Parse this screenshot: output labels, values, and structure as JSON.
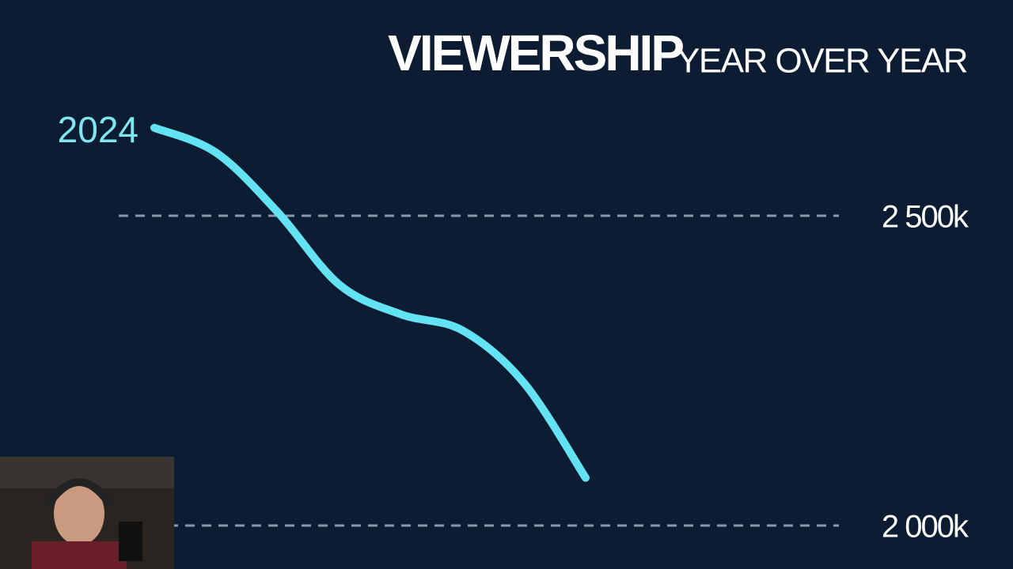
{
  "chart_data": {
    "type": "line",
    "title": "VIEWERSHIP",
    "subtitle": "YEAR OVER YEAR",
    "categories": [
      "2024",
      null,
      null,
      null,
      null,
      null,
      null,
      null
    ],
    "series": [
      {
        "color": "#62e2f2",
        "values": [
          2642,
          2602,
          2506,
          2389,
          2341,
          2315,
          2230,
          2077
        ]
      }
    ],
    "ylim": [
      1960,
      2700
    ],
    "yticks": [
      {
        "value": 2000,
        "label": "2 000k"
      },
      {
        "value": 2500,
        "label": "2 500k"
      }
    ],
    "grid": true
  }
}
